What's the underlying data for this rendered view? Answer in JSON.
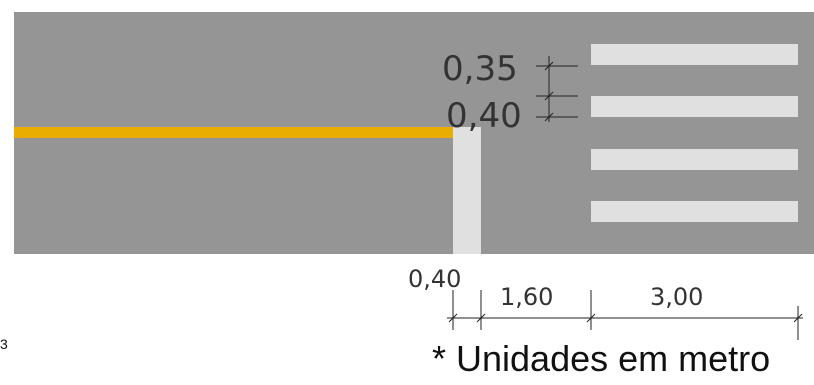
{
  "colors": {
    "asphalt": "#959595",
    "yellow_line": "#e8ad00",
    "marking_white": "#e0e0e0",
    "dimension_line": "#222222"
  },
  "dimensions": {
    "stripe_width": "0,35",
    "stripe_gap": "0,40",
    "stop_line_width": "0,40",
    "clearance": "1,60",
    "crosswalk_length": "3,00"
  },
  "note": "* Unidades em metro",
  "edge_fragment": "3"
}
